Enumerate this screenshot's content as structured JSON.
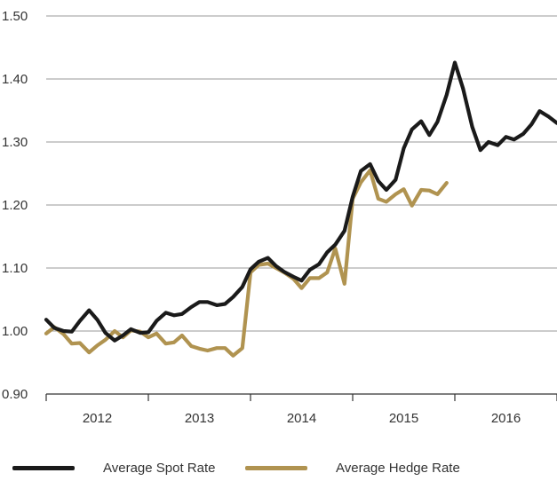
{
  "chart_data": {
    "type": "line",
    "title": "",
    "xlabel": "",
    "ylabel": "",
    "ylim": [
      0.9,
      1.5
    ],
    "yticks": [
      "1.50",
      "1.40",
      "1.30",
      "1.20",
      "1.10",
      "1.00",
      "0.90"
    ],
    "ytick_values": [
      1.5,
      1.4,
      1.3,
      1.2,
      1.1,
      1.0,
      0.9
    ],
    "xlim": [
      2011.5,
      2016.5
    ],
    "xtick_labels": [
      "2012",
      "2013",
      "2014",
      "2015",
      "2016"
    ],
    "xtick_positions": [
      2012,
      2013,
      2014,
      2015,
      2016
    ],
    "grid": "horizontal",
    "legend_position": "bottom",
    "series": [
      {
        "name": "Average Spot Rate",
        "color": "#1a1a1a",
        "x": [
          2011.5,
          2011.58,
          2011.67,
          2011.75,
          2011.83,
          2011.92,
          2012.0,
          2012.08,
          2012.17,
          2012.25,
          2012.33,
          2012.42,
          2012.5,
          2012.58,
          2012.67,
          2012.75,
          2012.83,
          2012.92,
          2013.0,
          2013.08,
          2013.17,
          2013.25,
          2013.33,
          2013.42,
          2013.5,
          2013.58,
          2013.67,
          2013.75,
          2013.83,
          2013.92,
          2014.0,
          2014.08,
          2014.17,
          2014.25,
          2014.33,
          2014.42,
          2014.5,
          2014.58,
          2014.67,
          2014.75,
          2014.83,
          2014.92,
          2015.0,
          2015.08,
          2015.17,
          2015.25,
          2015.33,
          2015.42,
          2015.5,
          2015.58,
          2015.67,
          2015.75,
          2015.83,
          2015.92,
          2016.0,
          2016.08,
          2016.17,
          2016.25,
          2016.33,
          2016.42,
          2016.5
        ],
        "values": [
          1.018,
          1.005,
          1.0,
          0.999,
          1.016,
          1.033,
          1.018,
          0.997,
          0.985,
          0.993,
          1.003,
          0.997,
          0.998,
          1.016,
          1.029,
          1.025,
          1.027,
          1.038,
          1.046,
          1.046,
          1.041,
          1.043,
          1.054,
          1.07,
          1.098,
          1.11,
          1.116,
          1.103,
          1.094,
          1.086,
          1.08,
          1.097,
          1.106,
          1.125,
          1.137,
          1.159,
          1.213,
          1.254,
          1.265,
          1.238,
          1.224,
          1.24,
          1.29,
          1.32,
          1.333,
          1.311,
          1.332,
          1.375,
          1.426,
          1.385,
          1.324,
          1.287,
          1.3,
          1.295,
          1.308,
          1.304,
          1.313,
          1.328,
          1.349,
          1.34,
          1.33
        ]
      },
      {
        "name": "Average Hedge Rate",
        "color": "#b09350",
        "x": [
          2011.5,
          2011.58,
          2011.67,
          2011.75,
          2011.83,
          2011.92,
          2012.0,
          2012.08,
          2012.17,
          2012.25,
          2012.33,
          2012.42,
          2012.5,
          2012.58,
          2012.67,
          2012.75,
          2012.83,
          2012.92,
          2013.0,
          2013.08,
          2013.17,
          2013.25,
          2013.33,
          2013.42,
          2013.5,
          2013.58,
          2013.67,
          2013.75,
          2013.83,
          2013.92,
          2014.0,
          2014.08,
          2014.17,
          2014.25,
          2014.33,
          2014.42,
          2014.5,
          2014.58,
          2014.67,
          2014.75,
          2014.83,
          2014.92,
          2015.0,
          2015.08,
          2015.17,
          2015.25,
          2015.33,
          2015.42
        ],
        "values": [
          0.996,
          1.006,
          0.995,
          0.98,
          0.981,
          0.966,
          0.977,
          0.986,
          1.0,
          0.99,
          1.001,
          0.999,
          0.99,
          0.996,
          0.98,
          0.982,
          0.993,
          0.976,
          0.972,
          0.969,
          0.973,
          0.973,
          0.961,
          0.973,
          1.093,
          1.105,
          1.107,
          1.1,
          1.093,
          1.083,
          1.068,
          1.084,
          1.084,
          1.093,
          1.131,
          1.075,
          1.21,
          1.236,
          1.255,
          1.21,
          1.205,
          1.217,
          1.225,
          1.199,
          1.224,
          1.223,
          1.217,
          1.235
        ]
      }
    ]
  },
  "legend": {
    "spot_label": "Average Spot Rate",
    "hedge_label": "Average Hedge Rate"
  }
}
